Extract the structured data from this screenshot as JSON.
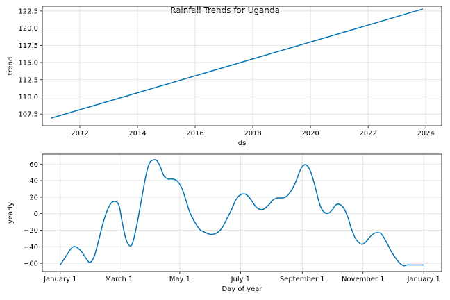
{
  "figure": {
    "title": "Rainfall Trends for Uganda"
  },
  "chart_data": [
    {
      "type": "line",
      "title": "",
      "xlabel": "ds",
      "ylabel": "trend",
      "xlim": [
        2010.7,
        2024.55
      ],
      "ylim": [
        105.8,
        123.2
      ],
      "grid": true,
      "x_ticks": [
        2012,
        2014,
        2016,
        2018,
        2020,
        2022,
        2024
      ],
      "x_tick_labels": [
        "2012",
        "2014",
        "2016",
        "2018",
        "2020",
        "2022",
        "2024"
      ],
      "y_ticks": [
        107.5,
        110.0,
        112.5,
        115.0,
        117.5,
        120.0,
        122.5
      ],
      "y_tick_labels": [
        "107.5",
        "110.0",
        "112.5",
        "115.0",
        "117.5",
        "120.0",
        "122.5"
      ],
      "series": [
        {
          "x": [
            2011.0,
            2023.9
          ],
          "y": [
            106.9,
            122.8
          ]
        }
      ]
    },
    {
      "type": "line",
      "title": "",
      "xlabel": "Day of year",
      "ylabel": "yearly",
      "xlim": [
        -18,
        383
      ],
      "ylim": [
        -70,
        72
      ],
      "grid": true,
      "x_ticks": [
        0,
        59,
        120,
        181,
        243,
        304,
        365
      ],
      "x_tick_labels": [
        "January 1",
        "March 1",
        "May 1",
        "July 1",
        "September 1",
        "November 1",
        "January 1"
      ],
      "y_ticks": [
        -60,
        -40,
        -20,
        0,
        20,
        40,
        60
      ],
      "y_tick_labels": [
        "−60",
        "−40",
        "−20",
        "0",
        "20",
        "40",
        "60"
      ],
      "series": [
        {
          "x": [
            0,
            6,
            13,
            20,
            27,
            30,
            34,
            38,
            44,
            50,
            55,
            59,
            62,
            66,
            70,
            73,
            77,
            82,
            86,
            90,
            96,
            100,
            104,
            108,
            112,
            117,
            122,
            126,
            130,
            135,
            140,
            146,
            151,
            156,
            162,
            167,
            172,
            176,
            180,
            184,
            188,
            192,
            196,
            199,
            203,
            207,
            211,
            214,
            218,
            222,
            226,
            229,
            233,
            237,
            240,
            243,
            247,
            251,
            255,
            259,
            262,
            266,
            270,
            274,
            277,
            281,
            285,
            289,
            292,
            296,
            300,
            303,
            307,
            311,
            315,
            318,
            322,
            326,
            330,
            333,
            337,
            341,
            345,
            348,
            351,
            355,
            360,
            363,
            365
          ],
          "y": [
            -62,
            -51,
            -40,
            -44,
            -56,
            -59,
            -52,
            -35,
            -7,
            11,
            15,
            10,
            -9,
            -31,
            -39,
            -34,
            -13,
            20,
            46,
            62,
            65,
            58,
            46,
            42,
            42,
            40,
            31,
            17,
            2,
            -10,
            -19,
            -23,
            -25,
            -24,
            -18,
            -7,
            5,
            16,
            22,
            24,
            22,
            16,
            9,
            6,
            5,
            8,
            13,
            17,
            19,
            19,
            20,
            23,
            30,
            40,
            50,
            57,
            59,
            52,
            37,
            18,
            7,
            1,
            1,
            6,
            11,
            11,
            6,
            -5,
            -17,
            -29,
            -35,
            -37,
            -34,
            -28,
            -24,
            -23,
            -24,
            -31,
            -40,
            -47,
            -54,
            -60,
            -63,
            -62,
            -62,
            -62,
            -62,
            -62,
            -62
          ]
        }
      ]
    }
  ]
}
